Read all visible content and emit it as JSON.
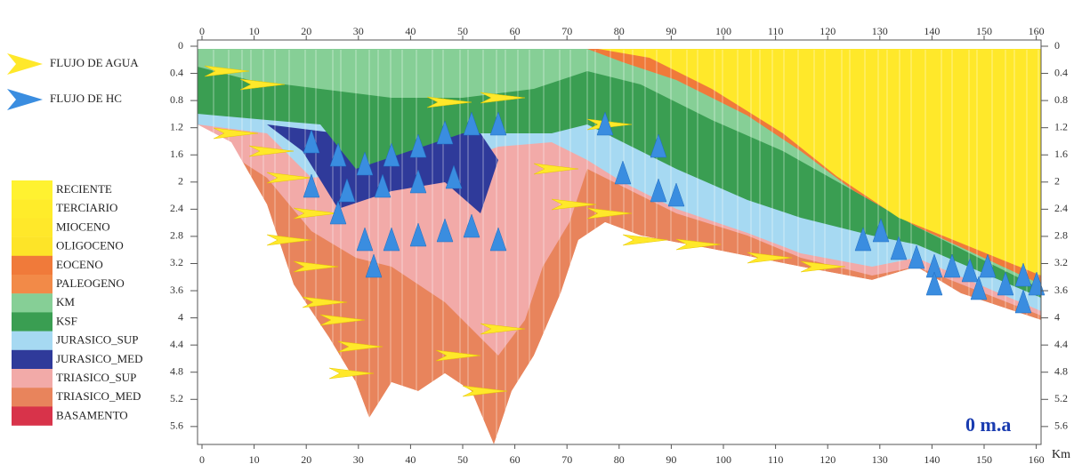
{
  "flow_legend": [
    {
      "label": "FLUJO DE AGUA",
      "color": "#ffe82a"
    },
    {
      "label": "FLUJO DE HC",
      "color": "#3a8de0"
    }
  ],
  "unit_legend": [
    {
      "label": "RECIENTE",
      "color": "#fff230"
    },
    {
      "label": "TERCIARIO",
      "color": "#ffec2a"
    },
    {
      "label": "MIOCENO",
      "color": "#ffe82a"
    },
    {
      "label": "OLIGOCENO",
      "color": "#fde428"
    },
    {
      "label": "EOCENO",
      "color": "#f07a3a"
    },
    {
      "label": "PALEOGENO",
      "color": "#f28a48"
    },
    {
      "label": "KM",
      "color": "#86cf96"
    },
    {
      "label": "KSF",
      "color": "#3a9e52"
    },
    {
      "label": "JURASICO_SUP",
      "color": "#a6d9f2"
    },
    {
      "label": "JURASICO_MED",
      "color": "#2f3a9a"
    },
    {
      "label": "TRIASICO_SUP",
      "color": "#f2aaa8"
    },
    {
      "label": "TRIASICO_MED",
      "color": "#e8845c"
    },
    {
      "label": "BASAMENTO",
      "color": "#d8334a"
    }
  ],
  "axes": {
    "x_ticks": [
      0,
      10,
      20,
      30,
      40,
      50,
      60,
      70,
      80,
      90,
      100,
      110,
      120,
      130,
      140,
      150,
      160
    ],
    "y_ticks": [
      0,
      0.4,
      0.8,
      1.2,
      1.6,
      2,
      2.4,
      2.8,
      3.2,
      3.6,
      4,
      4.4,
      4.8,
      5.2,
      5.6
    ],
    "x_unit": "Km"
  },
  "time_label": "0 m.a"
}
